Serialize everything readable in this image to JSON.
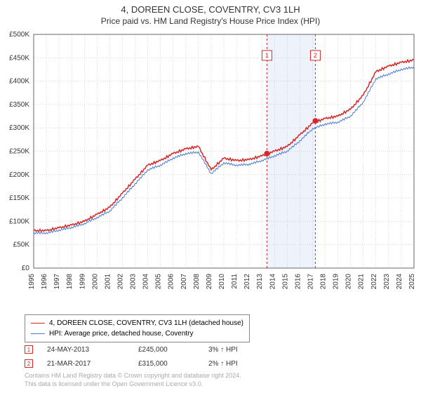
{
  "title_line1": "4, DOREEN CLOSE, COVENTRY, CV3 1LH",
  "title_line2": "Price paid vs. HM Land Registry's House Price Index (HPI)",
  "chart": {
    "type": "line",
    "background_color": "#ffffff",
    "grid_color": "#b0b0b0",
    "axis_color": "#666666",
    "x_years": [
      1995,
      1996,
      1997,
      1998,
      1999,
      2000,
      2001,
      2002,
      2003,
      2004,
      2005,
      2006,
      2007,
      2008,
      2009,
      2010,
      2011,
      2012,
      2013,
      2014,
      2015,
      2016,
      2017,
      2018,
      2019,
      2020,
      2021,
      2022,
      2023,
      2024,
      2025
    ],
    "ylim": [
      0,
      500000
    ],
    "ytick_step": 50000,
    "ytick_labels": [
      "£0",
      "£50K",
      "£100K",
      "£150K",
      "£200K",
      "£250K",
      "£300K",
      "£350K",
      "£400K",
      "£450K",
      "£500K"
    ],
    "highlight_band": {
      "x_from": 2013.4,
      "x_to": 2017.22,
      "fill": "#eef3fb"
    },
    "highlight_lines": [
      {
        "x": 2013.4,
        "color": "#d62728",
        "dash": "3,3"
      },
      {
        "x": 2017.22,
        "color": "#d62728",
        "dash": "3,3"
      }
    ],
    "highlight_markers": [
      {
        "n": "1",
        "x": 2013.4,
        "y_label": 455000,
        "color": "#d62728"
      },
      {
        "n": "2",
        "x": 2017.22,
        "y_label": 455000,
        "color": "#d62728"
      }
    ],
    "sale_points": [
      {
        "x": 2013.4,
        "y": 245000,
        "color": "#d62728"
      },
      {
        "x": 2017.22,
        "y": 315000,
        "color": "#d62728"
      }
    ],
    "series": [
      {
        "label": "4, DOREEN CLOSE, COVENTRY, CV3 1LH (detached house)",
        "color": "#d62728",
        "line_width": 1.5,
        "data_by_year": {
          "1995": 80000,
          "1996": 80000,
          "1997": 86000,
          "1998": 92000,
          "1999": 100000,
          "2000": 115000,
          "2001": 130000,
          "2002": 160000,
          "2003": 190000,
          "2004": 220000,
          "2005": 230000,
          "2006": 245000,
          "2007": 255000,
          "2008": 260000,
          "2009": 210000,
          "2010": 235000,
          "2011": 230000,
          "2012": 232000,
          "2013": 240000,
          "2014": 250000,
          "2015": 260000,
          "2016": 285000,
          "2017": 310000,
          "2018": 320000,
          "2019": 325000,
          "2020": 340000,
          "2021": 370000,
          "2022": 420000,
          "2023": 432000,
          "2024": 440000,
          "2025": 445000
        },
        "jitter": [
          [
            0,
            0
          ],
          [
            0.2,
            2000
          ],
          [
            0.4,
            -1500
          ],
          [
            0.6,
            1000
          ],
          [
            0.8,
            -2000
          ],
          [
            0.1,
            3000
          ],
          [
            0.3,
            -2500
          ],
          [
            0.5,
            1500
          ],
          [
            0.7,
            -1000
          ],
          [
            0.9,
            2000
          ]
        ]
      },
      {
        "label": "HPI: Average price, detached house, Coventry",
        "color": "#4a7bd1",
        "line_width": 1,
        "data_by_year": {
          "1995": 75000,
          "1996": 75000,
          "1997": 81000,
          "1998": 87000,
          "1999": 95000,
          "2000": 108000,
          "2001": 122000,
          "2002": 150000,
          "2003": 180000,
          "2004": 210000,
          "2005": 220000,
          "2006": 235000,
          "2007": 245000,
          "2008": 248000,
          "2009": 202000,
          "2010": 225000,
          "2011": 220000,
          "2012": 222000,
          "2013": 230000,
          "2014": 240000,
          "2015": 250000,
          "2016": 272000,
          "2017": 298000,
          "2018": 308000,
          "2019": 312000,
          "2020": 325000,
          "2021": 355000,
          "2022": 405000,
          "2023": 415000,
          "2024": 425000,
          "2025": 430000
        },
        "jitter": [
          [
            0.05,
            1000
          ],
          [
            0.25,
            -2000
          ],
          [
            0.45,
            1500
          ],
          [
            0.65,
            -1200
          ],
          [
            0.85,
            2200
          ],
          [
            0.15,
            -1800
          ],
          [
            0.35,
            2600
          ],
          [
            0.55,
            -1400
          ],
          [
            0.75,
            900
          ],
          [
            0.95,
            -2100
          ]
        ]
      }
    ]
  },
  "legend": {
    "items": [
      {
        "color": "#d62728",
        "label": "4, DOREEN CLOSE, COVENTRY, CV3 1LH (detached house)"
      },
      {
        "color": "#4a7bd1",
        "label": "HPI: Average price, detached house, Coventry"
      }
    ]
  },
  "sales": [
    {
      "n": "1",
      "date": "24-MAY-2013",
      "price": "£245,000",
      "hpi_diff": "3% ↑ HPI",
      "color": "#d62728"
    },
    {
      "n": "2",
      "date": "21-MAR-2017",
      "price": "£315,000",
      "hpi_diff": "2% ↑ HPI",
      "color": "#d62728"
    }
  ],
  "footnote_line1": "Contains HM Land Registry data © Crown copyright and database right 2024.",
  "footnote_line2": "This data is licensed under the Open Government Licence v3.0."
}
